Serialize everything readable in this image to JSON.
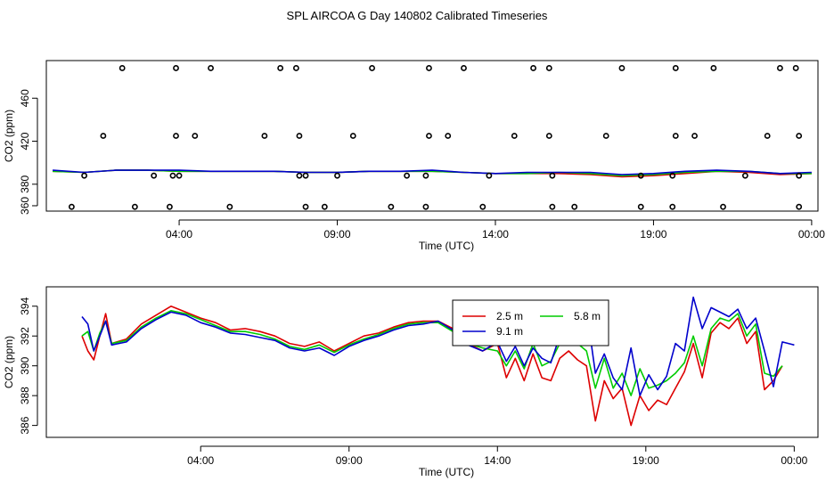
{
  "title": "SPL AIRCOA G  Day 140802  Calibrated Timeseries",
  "colors": {
    "h2_5": "#dd0000",
    "h5_8": "#00cc00",
    "h9_1": "#0000cc",
    "axis": "#000000"
  },
  "chart_data": [
    {
      "id": "top",
      "type": "line",
      "ylabel": "CO2 (ppm)",
      "xlabel": "Time (UTC)",
      "xlim": [
        -0.2,
        24.2
      ],
      "ylim": [
        355,
        495
      ],
      "x_ticks": [
        {
          "v": 4,
          "label": "04:00"
        },
        {
          "v": 9,
          "label": "09:00"
        },
        {
          "v": 14,
          "label": "14:00"
        },
        {
          "v": 19,
          "label": "19:00"
        },
        {
          "v": 24,
          "label": "00:00"
        }
      ],
      "y_ticks": [
        {
          "v": 360,
          "label": "360"
        },
        {
          "v": 380,
          "label": "380"
        },
        {
          "v": 420,
          "label": "420"
        },
        {
          "v": 460,
          "label": "460"
        }
      ],
      "markers": {
        "name": "status flags",
        "x": [
          2.2,
          3.9,
          5.0,
          7.2,
          7.7,
          10.1,
          11.9,
          13.0,
          15.2,
          15.7,
          18.0,
          19.7,
          20.9,
          23.0,
          23.5,
          1.6,
          3.9,
          4.5,
          6.7,
          7.8,
          9.5,
          11.9,
          12.5,
          14.6,
          15.7,
          17.5,
          19.7,
          20.3,
          22.6,
          23.6,
          1.0,
          3.2,
          3.8,
          4.0,
          7.8,
          8.0,
          9.0,
          11.2,
          11.8,
          13.8,
          15.8,
          18.6,
          19.6,
          21.9,
          23.6,
          0.6,
          2.6,
          3.7,
          5.6,
          8.0,
          8.6,
          10.7,
          11.8,
          13.6,
          15.8,
          16.5,
          18.6,
          19.6,
          21.2,
          23.6
        ],
        "y": [
          488,
          488,
          488,
          488,
          488,
          488,
          488,
          488,
          488,
          488,
          488,
          488,
          488,
          488,
          488,
          425,
          425,
          425,
          425,
          425,
          425,
          425,
          425,
          425,
          425,
          425,
          425,
          425,
          425,
          425,
          388,
          388,
          388,
          388,
          388,
          388,
          388,
          388,
          388,
          388,
          388,
          388,
          388,
          388,
          388,
          359,
          359,
          359,
          359,
          359,
          359,
          359,
          359,
          359,
          359,
          359,
          359,
          359,
          359,
          359
        ]
      },
      "series": [
        {
          "name": "2.5 m",
          "color": "#dd0000",
          "x": [
            0,
            1,
            2,
            3,
            4,
            5,
            6,
            7,
            8,
            9,
            10,
            11,
            12,
            13,
            14,
            15,
            16,
            17,
            18,
            19,
            20,
            21,
            22,
            23,
            24
          ],
          "y": [
            392,
            391,
            393,
            393,
            392,
            392,
            392,
            392,
            391,
            391,
            392,
            392,
            392,
            391,
            390,
            390,
            390,
            389,
            387,
            388,
            390,
            392,
            391,
            389,
            390
          ]
        },
        {
          "name": "5.8 m",
          "color": "#00cc00",
          "x": [
            0,
            1,
            2,
            3,
            4,
            5,
            6,
            7,
            8,
            9,
            10,
            11,
            12,
            13,
            14,
            15,
            16,
            17,
            18,
            19,
            20,
            21,
            22,
            23,
            24
          ],
          "y": [
            392,
            391,
            393,
            393,
            392,
            392,
            392,
            392,
            391,
            391,
            392,
            392,
            392,
            391,
            390,
            390,
            391,
            390,
            388,
            389,
            391,
            392,
            392,
            390,
            390
          ]
        },
        {
          "name": "9.1 m",
          "color": "#0000cc",
          "x": [
            0,
            1,
            2,
            3,
            4,
            5,
            6,
            7,
            8,
            9,
            10,
            11,
            12,
            13,
            14,
            15,
            16,
            17,
            18,
            19,
            20,
            21,
            22,
            23,
            24
          ],
          "y": [
            393,
            391,
            393,
            393,
            393,
            392,
            392,
            392,
            391,
            391,
            392,
            392,
            393,
            391,
            390,
            391,
            391,
            391,
            389,
            390,
            392,
            393,
            392,
            390,
            391
          ]
        }
      ]
    },
    {
      "id": "bottom",
      "type": "line",
      "ylabel": "CO2 (ppm)",
      "xlabel": "Time (UTC)",
      "xlim": [
        -1.2,
        24.8
      ],
      "ylim": [
        385.2,
        395.3
      ],
      "x_ticks": [
        {
          "v": 4,
          "label": "04:00"
        },
        {
          "v": 9,
          "label": "09:00"
        },
        {
          "v": 14,
          "label": "14:00"
        },
        {
          "v": 19,
          "label": "19:00"
        },
        {
          "v": 24,
          "label": "00:00"
        }
      ],
      "y_ticks": [
        {
          "v": 386,
          "label": "386"
        },
        {
          "v": 388,
          "label": "388"
        },
        {
          "v": 390,
          "label": "390"
        },
        {
          "v": 392,
          "label": "392"
        },
        {
          "v": 394,
          "label": "394"
        }
      ],
      "legend": {
        "position": "top-center",
        "entries": [
          "2.5 m",
          "5.8 m",
          "9.1 m"
        ]
      },
      "series": [
        {
          "name": "2.5 m",
          "color": "#dd0000",
          "x": [
            0.0,
            0.2,
            0.4,
            0.6,
            0.8,
            1.0,
            1.5,
            2.0,
            2.5,
            3.0,
            3.5,
            4.0,
            4.5,
            5.0,
            5.5,
            6.0,
            6.5,
            7.0,
            7.5,
            8.0,
            8.5,
            9.0,
            9.5,
            10.0,
            10.5,
            11.0,
            11.5,
            12.0,
            12.5,
            13.0,
            13.5,
            14.0,
            14.3,
            14.6,
            14.9,
            15.2,
            15.5,
            15.8,
            16.1,
            16.4,
            16.7,
            17.0,
            17.3,
            17.6,
            17.9,
            18.2,
            18.5,
            18.8,
            19.1,
            19.4,
            19.7,
            20.0,
            20.3,
            20.6,
            20.9,
            21.2,
            21.5,
            21.8,
            22.1,
            22.4,
            22.7,
            23.0,
            23.3,
            23.6
          ],
          "y": [
            392.0,
            391.0,
            390.4,
            392.0,
            393.5,
            391.5,
            391.8,
            392.8,
            393.4,
            394.0,
            393.6,
            393.2,
            392.9,
            392.4,
            392.5,
            392.3,
            392.0,
            391.5,
            391.3,
            391.6,
            391.0,
            391.5,
            392.0,
            392.2,
            392.6,
            392.9,
            393.0,
            393.0,
            392.5,
            391.5,
            391.0,
            391.5,
            389.2,
            390.5,
            389.0,
            390.8,
            389.2,
            389.0,
            390.5,
            391.0,
            390.4,
            390.0,
            386.3,
            389.0,
            387.8,
            388.5,
            386.0,
            388.0,
            387.0,
            387.7,
            387.4,
            388.5,
            389.6,
            391.5,
            389.2,
            392.2,
            392.9,
            392.5,
            393.2,
            391.5,
            392.3,
            388.4,
            389.0,
            390.0
          ]
        },
        {
          "name": "5.8 m",
          "color": "#00cc00",
          "x": [
            0.0,
            0.2,
            0.4,
            0.6,
            0.8,
            1.0,
            1.5,
            2.0,
            2.5,
            3.0,
            3.5,
            4.0,
            4.5,
            5.0,
            5.5,
            6.0,
            6.5,
            7.0,
            7.5,
            8.0,
            8.5,
            9.0,
            9.5,
            10.0,
            10.5,
            11.0,
            11.5,
            12.0,
            12.5,
            13.0,
            13.5,
            14.0,
            14.3,
            14.6,
            14.9,
            15.2,
            15.5,
            15.8,
            16.1,
            16.4,
            16.7,
            17.0,
            17.3,
            17.6,
            17.9,
            18.2,
            18.5,
            18.8,
            19.1,
            19.4,
            19.7,
            20.0,
            20.3,
            20.6,
            20.9,
            21.2,
            21.5,
            21.8,
            22.1,
            22.4,
            22.7,
            23.0,
            23.3,
            23.6
          ],
          "y": [
            392.0,
            392.3,
            391.0,
            392.2,
            393.0,
            391.5,
            391.7,
            392.6,
            393.2,
            393.7,
            393.5,
            393.1,
            392.7,
            392.3,
            392.3,
            392.1,
            391.8,
            391.3,
            391.1,
            391.4,
            390.9,
            391.4,
            391.8,
            392.1,
            392.5,
            392.8,
            392.9,
            392.9,
            392.3,
            391.5,
            391.2,
            391.0,
            390.0,
            391.0,
            389.8,
            391.5,
            390.0,
            390.3,
            391.5,
            392.0,
            391.5,
            391.0,
            388.5,
            390.5,
            388.5,
            389.5,
            388.0,
            389.8,
            388.5,
            388.7,
            389.0,
            389.5,
            390.2,
            392.0,
            390.0,
            392.5,
            393.2,
            393.0,
            393.5,
            392.0,
            392.8,
            389.5,
            389.3,
            390.0
          ]
        },
        {
          "name": "9.1 m",
          "color": "#0000cc",
          "x": [
            0.0,
            0.2,
            0.4,
            0.6,
            0.8,
            1.0,
            1.5,
            2.0,
            2.5,
            3.0,
            3.5,
            4.0,
            4.5,
            5.0,
            5.5,
            6.0,
            6.5,
            7.0,
            7.5,
            8.0,
            8.5,
            9.0,
            9.5,
            10.0,
            10.5,
            11.0,
            11.5,
            12.0,
            12.5,
            13.0,
            13.5,
            14.0,
            14.3,
            14.6,
            14.9,
            15.2,
            15.5,
            15.8,
            16.1,
            16.4,
            16.7,
            17.0,
            17.3,
            17.6,
            17.9,
            18.2,
            18.5,
            18.8,
            19.1,
            19.4,
            19.7,
            20.0,
            20.3,
            20.6,
            20.9,
            21.2,
            21.5,
            21.8,
            22.1,
            22.4,
            22.7,
            23.0,
            23.3,
            23.6,
            24.0
          ],
          "y": [
            393.3,
            392.8,
            391.0,
            392.0,
            393.0,
            391.4,
            391.6,
            392.5,
            393.1,
            393.6,
            393.4,
            392.9,
            392.6,
            392.2,
            392.1,
            391.9,
            391.7,
            391.2,
            391.0,
            391.2,
            390.7,
            391.3,
            391.7,
            392.0,
            392.4,
            392.7,
            392.8,
            393.0,
            392.4,
            391.4,
            391.0,
            391.6,
            390.3,
            391.3,
            390.0,
            391.2,
            390.5,
            390.2,
            392.0,
            393.0,
            392.4,
            393.8,
            389.5,
            390.8,
            389.2,
            388.4,
            391.2,
            388.0,
            389.4,
            388.4,
            389.3,
            391.5,
            391.0,
            394.6,
            392.5,
            393.9,
            393.6,
            393.3,
            393.8,
            392.5,
            393.2,
            391.0,
            388.6,
            391.6,
            391.4
          ]
        }
      ]
    }
  ]
}
